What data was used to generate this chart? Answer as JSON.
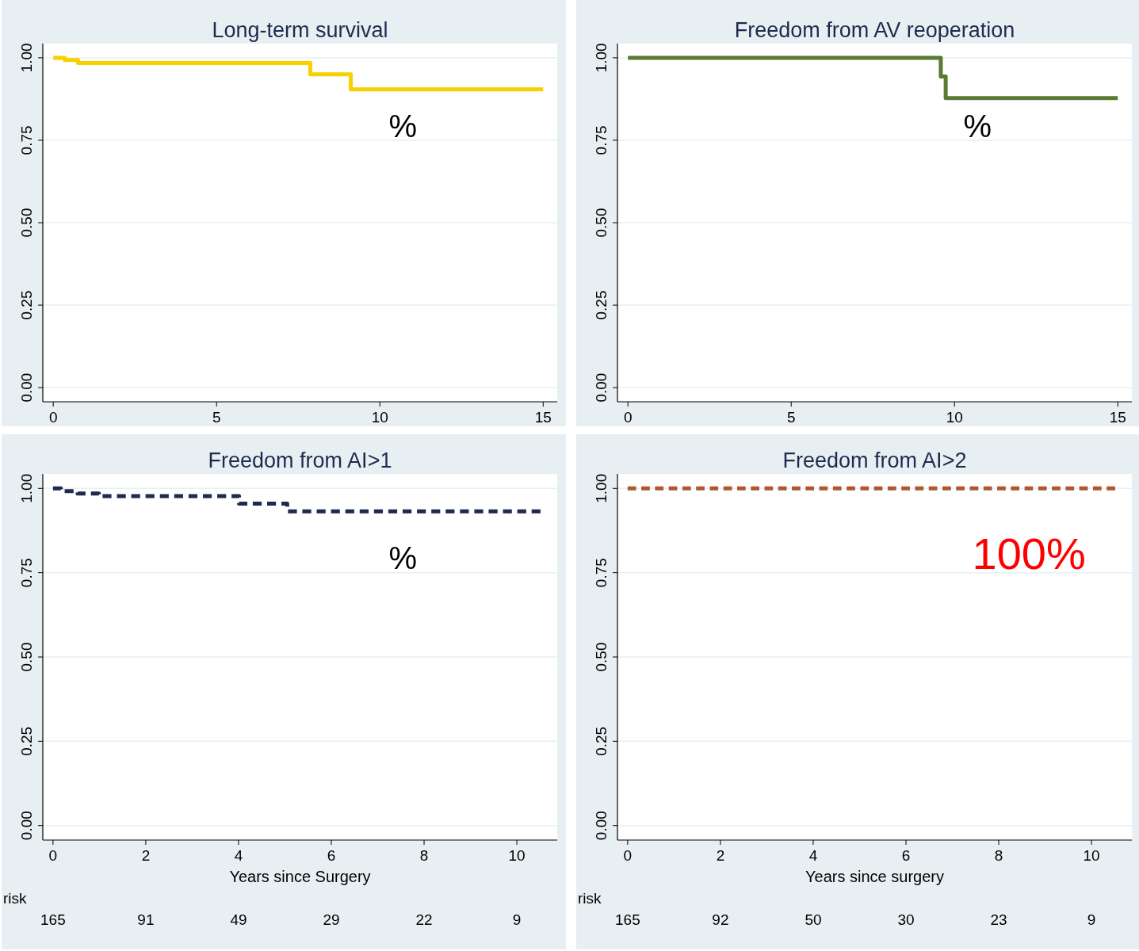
{
  "chart_data": [
    {
      "type": "step",
      "title": "Long-term survival",
      "xlim": [
        -0.32,
        15.43
      ],
      "xticks": [
        0,
        5,
        10,
        15
      ],
      "ylim": [
        -0.043,
        1.043
      ],
      "yticks": [
        {
          "value": 0,
          "label": "0.00"
        },
        {
          "value": 0.25,
          "label": "0.25"
        },
        {
          "value": 0.5,
          "label": "0.50"
        },
        {
          "value": 0.75,
          "label": "0.75"
        },
        {
          "value": 1,
          "label": "1.00"
        }
      ],
      "grid": "y",
      "line_style": "solid",
      "annotations": [
        "%"
      ],
      "series": [
        {
          "color": "#f8d000",
          "x": [
            0,
            0.35,
            0.76,
            7.87,
            9.11,
            15.0
          ],
          "values": [
            1.0,
            0.993,
            0.984,
            0.95,
            0.904,
            0.904
          ]
        }
      ]
    },
    {
      "type": "step",
      "title": "Freedom from AV reoperation",
      "xlim": [
        -0.32,
        15.43
      ],
      "xticks": [
        0,
        5,
        10,
        15
      ],
      "ylim": [
        -0.043,
        1.043
      ],
      "yticks": [
        {
          "value": 0,
          "label": "0.00"
        },
        {
          "value": 0.25,
          "label": "0.25"
        },
        {
          "value": 0.5,
          "label": "0.50"
        },
        {
          "value": 0.75,
          "label": "0.75"
        },
        {
          "value": 1,
          "label": "1.00"
        }
      ],
      "grid": "y",
      "line_style": "solid",
      "annotations": [
        "%"
      ],
      "series": [
        {
          "color": "#5a7a32",
          "x": [
            0,
            9.58,
            9.73,
            15.0
          ],
          "values": [
            1.0,
            0.943,
            0.878,
            0.878
          ]
        }
      ]
    },
    {
      "type": "step",
      "title": "Freedom from AI>1",
      "xlabel": "Years since Surgery",
      "xlim": [
        -0.22,
        10.87
      ],
      "xticks": [
        0,
        2,
        4,
        6,
        8,
        10
      ],
      "ylim": [
        -0.043,
        1.043
      ],
      "yticks": [
        {
          "value": 0,
          "label": "0.00"
        },
        {
          "value": 0.25,
          "label": "0.25"
        },
        {
          "value": 0.5,
          "label": "0.50"
        },
        {
          "value": 0.75,
          "label": "0.75"
        },
        {
          "value": 1,
          "label": "1.00"
        }
      ],
      "grid": "y",
      "line_style": "dashed",
      "annotations": [
        "%",
        "risk",
        "165",
        "91",
        "49",
        "29",
        "22",
        "9"
      ],
      "series": [
        {
          "color": "#1e2a4e",
          "x": [
            0,
            0.17,
            0.53,
            0.99,
            4.01,
            5.05,
            10.51
          ],
          "values": [
            1.0,
            0.992,
            0.985,
            0.977,
            0.955,
            0.932,
            0.932
          ]
        }
      ]
    },
    {
      "type": "step",
      "title": "Freedom from AI>2",
      "xlabel": "Years since surgery",
      "xlim": [
        -0.22,
        10.87
      ],
      "xticks": [
        0,
        2,
        4,
        6,
        8,
        10
      ],
      "ylim": [
        -0.043,
        1.043
      ],
      "yticks": [
        {
          "value": 0,
          "label": "0.00"
        },
        {
          "value": 0.25,
          "label": "0.25"
        },
        {
          "value": 0.5,
          "label": "0.50"
        },
        {
          "value": 0.75,
          "label": "0.75"
        },
        {
          "value": 1,
          "label": "1.00"
        }
      ],
      "grid": "y",
      "line_style": "dashed",
      "annotations": [
        "100%",
        "risk",
        "165",
        "92",
        "50",
        "30",
        "23",
        "9"
      ],
      "series": [
        {
          "color": "#b0562e",
          "x": [
            0,
            10.51
          ],
          "values": [
            1.0,
            1.0
          ]
        }
      ]
    }
  ]
}
